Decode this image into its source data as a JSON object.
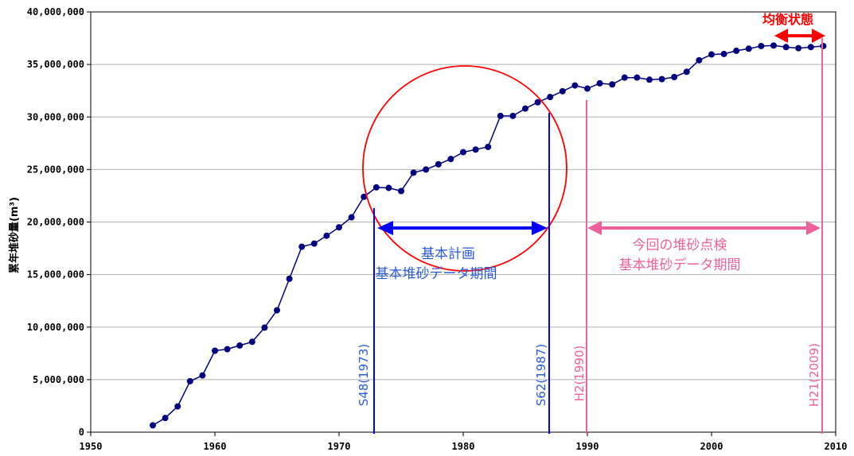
{
  "chart_data": {
    "type": "line",
    "ylabel": "累年堆砂量(m³)",
    "xlim": [
      1950,
      2010
    ],
    "ylim": [
      0,
      40000000
    ],
    "grid": true,
    "x_ticks": [
      "1950",
      "1960",
      "1970",
      "1980",
      "1990",
      "2000",
      "2010"
    ],
    "y_ticks": [
      "0",
      "5,000,000",
      "10,000,000",
      "15,000,000",
      "20,000,000",
      "25,000,000",
      "30,000,000",
      "35,000,000",
      "40,000,000"
    ],
    "series": [
      {
        "color": "#000080",
        "x": [
          1955,
          1956,
          1957,
          1958,
          1959,
          1960,
          1961,
          1962,
          1963,
          1964,
          1965,
          1966,
          1967,
          1968,
          1969,
          1970,
          1971,
          1972,
          1973,
          1974,
          1975,
          1976,
          1977,
          1978,
          1979,
          1980,
          1981,
          1982,
          1983,
          1984,
          1985,
          1986,
          1987,
          1988,
          1989,
          1990,
          1991,
          1992,
          1993,
          1994,
          1995,
          1996,
          1997,
          1998,
          1999,
          2000,
          2001,
          2002,
          2003,
          2004,
          2005,
          2006,
          2007,
          2008,
          2009
        ],
        "values": [
          650000,
          1350000,
          2450000,
          4850000,
          5400000,
          7750000,
          7900000,
          8250000,
          8600000,
          9950000,
          11600000,
          14600000,
          17650000,
          17950000,
          18700000,
          19500000,
          20450000,
          22400000,
          23300000,
          23250000,
          22950000,
          24700000,
          25000000,
          25500000,
          26000000,
          26650000,
          26900000,
          27150000,
          30100000,
          30100000,
          30800000,
          31400000,
          31900000,
          32450000,
          33000000,
          32700000,
          33200000,
          33100000,
          33750000,
          33750000,
          33550000,
          33600000,
          33800000,
          34300000,
          35400000,
          35950000,
          36000000,
          36300000,
          36500000,
          36750000,
          36800000,
          36650000,
          36550000,
          36650000,
          36750000
        ]
      }
    ],
    "annotations": {
      "plan_label_line1": "基本計画",
      "plan_label_line2": "基本堆砂データ期間",
      "current_label_line1": "今回の堆砂点検",
      "current_label_line2": "基本堆砂データ期間",
      "equilibrium_label": "均衡状態",
      "vline_s48": "S48(1973)",
      "vline_s62": "S62(1987)",
      "vline_h2": "H2(1990)",
      "vline_h21": "H21(2009)"
    },
    "colors": {
      "series": "#000080",
      "plan": "#0000ff",
      "current": "#f0609a",
      "equilibrium": "#ff0000",
      "grid": "#b0b0b0"
    }
  }
}
